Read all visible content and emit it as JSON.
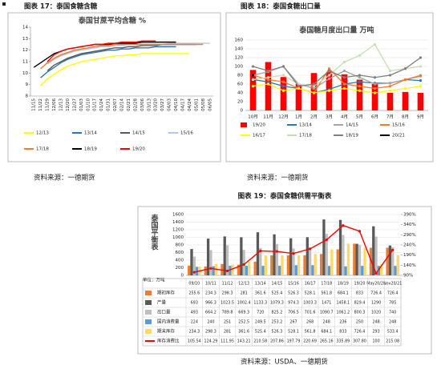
{
  "chart_data": [
    {
      "type": "line",
      "caption": "图表 17：泰国食糖含糖",
      "source": "资料来源：一德期货",
      "title": "泰国甘蔗平均含糖 %",
      "categories": [
        "11/15",
        "11/22",
        "11/29",
        "12/06",
        "12/13",
        "12/20",
        "12/27",
        "01/03",
        "01/10",
        "01/17",
        "01/24",
        "01/31",
        "02/07",
        "02/14",
        "02/21",
        "02/28",
        "03/06",
        "03/13",
        "03/20",
        "03/27",
        "04/03",
        "04/10",
        "04/17",
        "04/24",
        "05/01",
        "05/08",
        "06/05"
      ],
      "ylim": [
        8,
        14
      ],
      "yticks": [
        8,
        9,
        10,
        11,
        12,
        13,
        14
      ],
      "series": [
        {
          "name": "12/13",
          "color": "#ffff00",
          "values": [
            null,
            8.9,
            9.5,
            9.9,
            10.3,
            10.6,
            10.8,
            11.0,
            11.1,
            11.2,
            11.3,
            11.4,
            11.5,
            11.5,
            11.6,
            11.6,
            11.7,
            11.7,
            11.7,
            11.7,
            11.7,
            11.7,
            11.7,
            11.7,
            null,
            null,
            null
          ]
        },
        {
          "name": "13/14",
          "color": "#2e75b6",
          "values": [
            null,
            9.6,
            10.1,
            10.5,
            10.9,
            11.2,
            11.4,
            11.6,
            11.7,
            11.8,
            11.9,
            12.0,
            12.0,
            12.1,
            12.1,
            12.2,
            12.2,
            12.2,
            12.3,
            12.3,
            12.3,
            12.3,
            null,
            null,
            null,
            null,
            null
          ]
        },
        {
          "name": "14/15",
          "color": "#595959",
          "values": [
            null,
            null,
            10.2,
            10.7,
            11.0,
            11.3,
            11.5,
            11.7,
            11.8,
            11.9,
            12.0,
            12.1,
            12.2,
            12.2,
            12.3,
            12.3,
            12.4,
            12.4,
            12.4,
            12.5,
            12.5,
            12.5,
            12.5,
            12.5,
            12.5,
            null,
            null
          ]
        },
        {
          "name": "15/16",
          "color": "#b4c7e7",
          "values": [
            null,
            null,
            10.8,
            11.2,
            11.5,
            11.7,
            11.9,
            12.0,
            12.1,
            12.2,
            12.3,
            12.3,
            12.4,
            12.4,
            12.5,
            12.5,
            12.5,
            12.5,
            12.5,
            12.5,
            12.6,
            12.6,
            12.6,
            12.6,
            12.6,
            12.6,
            12.6
          ]
        },
        {
          "name": "17/18",
          "color": "#ed7d31",
          "values": [
            null,
            10.4,
            10.9,
            11.3,
            11.6,
            11.8,
            12.0,
            12.1,
            12.2,
            12.3,
            12.4,
            12.4,
            12.5,
            12.5,
            12.5,
            12.5,
            12.5,
            12.5,
            12.5,
            12.5,
            12.5,
            12.5,
            12.5,
            12.5,
            12.5,
            12.5,
            null
          ]
        },
        {
          "name": "18/19",
          "color": "#000000",
          "values": [
            10.5,
            10.9,
            11.3,
            11.7,
            11.9,
            12.1,
            12.2,
            12.3,
            12.4,
            12.5,
            12.5,
            12.5,
            12.6,
            12.6,
            12.6,
            12.6,
            12.7,
            12.7,
            12.7,
            12.7,
            12.7,
            12.7,
            null,
            null,
            null,
            null,
            null
          ]
        },
        {
          "name": "19/20",
          "color": "#ff0000",
          "values": [
            null,
            null,
            11.0,
            11.6,
            11.9,
            12.1,
            12.2,
            12.3,
            12.4,
            12.5,
            12.5,
            12.6,
            12.6,
            12.7,
            12.7,
            12.7,
            12.8,
            12.8,
            12.8,
            null,
            null,
            null,
            null,
            null,
            null,
            null,
            null
          ]
        }
      ]
    },
    {
      "type": "combo",
      "caption": "图表 18：泰国食糖出口量",
      "source": "资料来源：一德期货",
      "title": "泰国糖月度出口量 万吨",
      "grid": true,
      "categories": [
        "10月",
        "11月",
        "12月",
        "1月",
        "2月",
        "3月",
        "4月",
        "5月",
        "6月",
        "7月",
        "8月",
        "9月"
      ],
      "ylim": [
        0,
        160
      ],
      "yticks": [
        0,
        20,
        40,
        60,
        80,
        100,
        120,
        140,
        160
      ],
      "series": [
        {
          "name": "19/20",
          "color": "#ff0000",
          "type": "bar",
          "values": [
            92,
            110,
            76,
            60,
            85,
            87,
            82,
            70,
            60,
            40,
            42,
            40
          ]
        },
        {
          "name": "13/14",
          "color": "#2e75b6",
          "type": "line",
          "values": [
            70,
            65,
            55,
            50,
            40,
            48,
            60,
            65,
            62,
            62,
            70,
            68
          ]
        },
        {
          "name": "14/15",
          "color": "#a5a5a5",
          "type": "line",
          "values": [
            80,
            88,
            100,
            60,
            50,
            72,
            90,
            75,
            60,
            62,
            70,
            80
          ]
        },
        {
          "name": "15/16",
          "color": "#ed7d31",
          "type": "line",
          "values": [
            80,
            70,
            65,
            50,
            40,
            95,
            60,
            55,
            50,
            55,
            70,
            78
          ]
        },
        {
          "name": "16/17",
          "color": "#ffff00",
          "type": "line",
          "values": [
            55,
            60,
            45,
            50,
            40,
            45,
            50,
            45,
            40,
            45,
            50,
            55
          ]
        },
        {
          "name": "17/18",
          "color": "#c5e0b4",
          "type": "line",
          "values": [
            70,
            75,
            80,
            60,
            55,
            80,
            110,
            125,
            150,
            90,
            95,
            100
          ]
        },
        {
          "name": "18/19",
          "color": "#7f7f7f",
          "type": "line",
          "values": [
            100,
            90,
            100,
            55,
            60,
            90,
            75,
            80,
            75,
            80,
            95,
            120
          ]
        },
        {
          "name": "20/21",
          "color": "#000000",
          "type": "line",
          "values": [
            80,
            null,
            null,
            null,
            null,
            null,
            null,
            null,
            null,
            null,
            null,
            null
          ]
        }
      ]
    },
    {
      "type": "combo",
      "table": true,
      "caption": "图表 19：泰国食糖供需平衡表",
      "source": "资料来源：USDA、一德期货",
      "title": "泰国平衡表",
      "unit": "单位：万吨",
      "grid": true,
      "categories": [
        "09/10",
        "10/11",
        "11/12",
        "12/13",
        "13/14",
        "14/15",
        "15/16",
        "16/17",
        "17/18",
        "18/19",
        "19/20",
        "May20/21",
        "Nov20/21"
      ],
      "ylim": [
        0,
        1600
      ],
      "yticks": [
        0,
        200,
        400,
        600,
        800,
        1000,
        1200,
        1400,
        1600
      ],
      "y2lim": [
        90,
        390
      ],
      "y2ticks": [
        {
          "value": 90,
          "label": "90%"
        },
        {
          "value": 140,
          "label": "140%"
        },
        {
          "value": 190,
          "label": "190%"
        },
        {
          "value": 240,
          "label": "240%"
        },
        {
          "value": 290,
          "label": "290%"
        },
        {
          "value": 340,
          "label": "340%"
        },
        {
          "value": 390,
          "label": "390%"
        }
      ],
      "series": [
        {
          "name": "期初库存",
          "color": "#ed7d31",
          "type": "bar",
          "values": [
            255.6,
            234.3,
            298.3,
            281,
            361.6,
            525.4,
            526.3,
            528.1,
            561.8,
            684.1,
            833,
            726.4,
            726.4
          ]
        },
        {
          "name": "产量",
          "color": "#595959",
          "type": "bar",
          "values": [
            693,
            966.3,
            1023.5,
            1002.4,
            1133.3,
            1079.3,
            974.3,
            1003.3,
            1471,
            1458.1,
            829.4,
            1290,
            785
          ]
        },
        {
          "name": "出口量",
          "color": "#bfbfbf",
          "type": "bar",
          "values": [
            493,
            664.2,
            789.8,
            669.3,
            720,
            825.2,
            706.5,
            701.6,
            1090.7,
            1061.2,
            800.3,
            1020,
            740
          ]
        },
        {
          "name": "国内消费量",
          "color": "#5b9bd5",
          "type": "bar",
          "values": [
            224,
            240,
            251,
            252.5,
            249.5,
            253.2,
            267,
            268,
            248,
            236,
            250,
            248,
            248
          ]
        },
        {
          "name": "期末库存",
          "color": "#ffd966",
          "type": "bar",
          "values": [
            234.3,
            298.3,
            281,
            361.6,
            525.4,
            526.3,
            528.1,
            561.8,
            684.1,
            833,
            726.4,
            293,
            533.4
          ]
        },
        {
          "name": "库存消费比",
          "color": "#ff0000",
          "type": "line",
          "axis": "y2",
          "values": [
            105.54,
            124.29,
            111.95,
            143.21,
            210.58,
            207.86,
            197.79,
            220.69,
            265.16,
            335.89,
            307.8,
            100,
            215.08
          ],
          "value_labels": [
            "105.54",
            "124.29",
            "111.95",
            "143.21",
            "210.58",
            "207.86",
            "197.79",
            "220.69",
            "265.16",
            "335.89",
            "307.80",
            "100",
            "215.08"
          ]
        }
      ]
    }
  ]
}
